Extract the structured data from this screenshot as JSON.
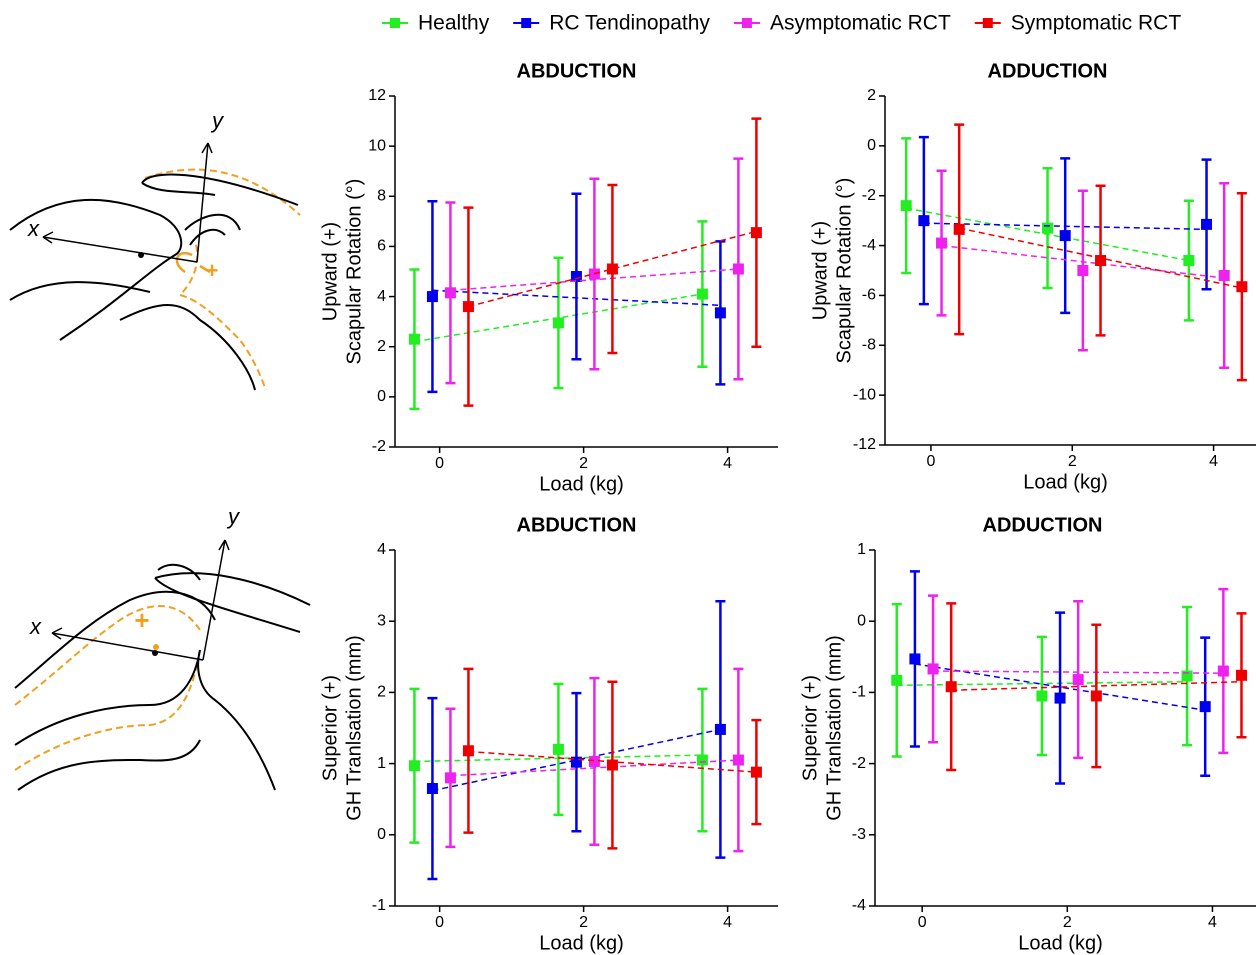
{
  "legend": {
    "items": [
      {
        "name": "Healthy",
        "color": "#22ee22"
      },
      {
        "name": "RC Tendinopathy",
        "color": "#0000ee"
      },
      {
        "name": "Asymptomatic RCT",
        "color": "#ee22ee"
      },
      {
        "name": "Symptomatic RCT",
        "color": "#ee0000"
      }
    ]
  },
  "diagrams": [
    {
      "x_label": "x",
      "y_label": "y"
    },
    {
      "x_label": "x",
      "y_label": "y"
    }
  ],
  "chart_data": [
    {
      "type": "errorbar",
      "title": "ABDUCTION",
      "xlabel": "Load (kg)",
      "ylabel": [
        "Upward (+)",
        "Scapular Rotation (°)"
      ],
      "xlim": [
        -0.62,
        4.7
      ],
      "xticks": [
        0,
        2,
        4
      ],
      "ylim": [
        -2,
        12
      ],
      "yticks": [
        -2,
        0,
        2,
        4,
        6,
        8,
        10,
        12
      ],
      "series": [
        {
          "x": [
            -0.35,
            1.65,
            3.65
          ],
          "values": [
            2.3,
            2.95,
            4.1
          ],
          "errors": [
            2.78,
            2.6,
            2.9
          ],
          "trend": [
            2.2,
            4.1
          ]
        },
        {
          "x": [
            -0.1,
            1.9,
            3.9
          ],
          "values": [
            4.0,
            4.8,
            3.35
          ],
          "errors": [
            3.8,
            3.3,
            2.85
          ],
          "trend": [
            4.25,
            3.65
          ]
        },
        {
          "x": [
            0.15,
            2.15,
            4.15
          ],
          "values": [
            4.15,
            4.9,
            5.1
          ],
          "errors": [
            3.6,
            3.8,
            4.4
          ],
          "trend": [
            4.25,
            5.1
          ]
        },
        {
          "x": [
            0.4,
            2.4,
            4.4
          ],
          "values": [
            3.6,
            5.1,
            6.55
          ],
          "errors": [
            3.95,
            3.35,
            4.55
          ],
          "trend": [
            3.6,
            6.6
          ]
        }
      ]
    },
    {
      "type": "errorbar",
      "title": "ADDUCTION",
      "xlabel": "Load (kg)",
      "ylabel": [
        "Upward (+)",
        "Scapular Rotation (°)"
      ],
      "xlim": [
        -0.65,
        4.6
      ],
      "xticks": [
        0,
        2,
        4
      ],
      "ylim": [
        -12,
        2
      ],
      "yticks": [
        -12,
        -10,
        -8,
        -6,
        -4,
        -2,
        0,
        2
      ],
      "series": [
        {
          "x": [
            -0.35,
            1.65,
            3.65
          ],
          "values": [
            -2.4,
            -3.3,
            -4.6
          ],
          "errors": [
            2.7,
            2.4,
            2.4
          ],
          "trend": [
            -2.5,
            -4.6
          ]
        },
        {
          "x": [
            -0.1,
            1.9,
            3.9
          ],
          "values": [
            -3.0,
            -3.6,
            -3.15
          ],
          "errors": [
            3.35,
            3.1,
            2.6
          ],
          "trend": [
            -3.1,
            -3.35
          ]
        },
        {
          "x": [
            0.15,
            2.15,
            4.15
          ],
          "values": [
            -3.9,
            -5.0,
            -5.2
          ],
          "errors": [
            2.9,
            3.2,
            3.7
          ],
          "trend": [
            -4.0,
            -5.3
          ]
        },
        {
          "x": [
            0.4,
            2.4,
            4.4
          ],
          "values": [
            -3.35,
            -4.6,
            -5.65
          ],
          "errors": [
            4.2,
            3.0,
            3.75
          ],
          "trend": [
            -3.3,
            -5.7
          ]
        }
      ]
    },
    {
      "type": "errorbar",
      "title": "ABDUCTION",
      "xlabel": "Load (kg)",
      "ylabel": [
        "Superior (+)",
        "GH Tranlsation (mm)"
      ],
      "xlim": [
        -0.62,
        4.7
      ],
      "xticks": [
        0,
        2,
        4
      ],
      "ylim": [
        -1,
        4
      ],
      "yticks": [
        -1,
        0,
        1,
        2,
        3,
        4
      ],
      "series": [
        {
          "x": [
            -0.35,
            1.65,
            3.65
          ],
          "values": [
            0.97,
            1.2,
            1.05
          ],
          "errors": [
            1.08,
            0.92,
            1.0
          ],
          "trend": [
            1.03,
            1.12
          ]
        },
        {
          "x": [
            -0.1,
            1.9,
            3.9
          ],
          "values": [
            0.65,
            1.02,
            1.48
          ],
          "errors": [
            1.27,
            0.97,
            1.8
          ],
          "trend": [
            0.62,
            1.48
          ]
        },
        {
          "x": [
            0.15,
            2.15,
            4.15
          ],
          "values": [
            0.8,
            1.03,
            1.05
          ],
          "errors": [
            0.97,
            1.17,
            1.28
          ],
          "trend": [
            0.83,
            1.05
          ]
        },
        {
          "x": [
            0.4,
            2.4,
            4.4
          ],
          "values": [
            1.18,
            0.98,
            0.88
          ],
          "errors": [
            1.15,
            1.17,
            0.73
          ],
          "trend": [
            1.17,
            0.88
          ]
        }
      ]
    },
    {
      "type": "errorbar",
      "title": "ADDUCTION",
      "xlabel": "Load (kg)",
      "ylabel": [
        "Superior (+)",
        "GH Tranlsation (mm)"
      ],
      "xlim": [
        -0.65,
        4.6
      ],
      "xticks": [
        0,
        2,
        4
      ],
      "ylim": [
        -4,
        1
      ],
      "yticks": [
        -4,
        -3,
        -2,
        -1,
        0,
        1
      ],
      "series": [
        {
          "x": [
            -0.35,
            1.65,
            3.65
          ],
          "values": [
            -0.83,
            -1.05,
            -0.77
          ],
          "errors": [
            1.07,
            0.83,
            0.97
          ],
          "trend": [
            -0.9,
            -0.85
          ]
        },
        {
          "x": [
            -0.1,
            1.9,
            3.9
          ],
          "values": [
            -0.53,
            -1.08,
            -1.2
          ],
          "errors": [
            1.23,
            1.2,
            0.97
          ],
          "trend": [
            -0.6,
            -1.25
          ]
        },
        {
          "x": [
            0.15,
            2.15,
            4.15
          ],
          "values": [
            -0.67,
            -0.82,
            -0.7
          ],
          "errors": [
            1.03,
            1.1,
            1.15
          ],
          "trend": [
            -0.7,
            -0.73
          ]
        },
        {
          "x": [
            0.4,
            2.4,
            4.4
          ],
          "values": [
            -0.92,
            -1.05,
            -0.76
          ],
          "errors": [
            1.17,
            1.0,
            0.87
          ],
          "trend": [
            -0.97,
            -0.85
          ]
        }
      ]
    }
  ]
}
